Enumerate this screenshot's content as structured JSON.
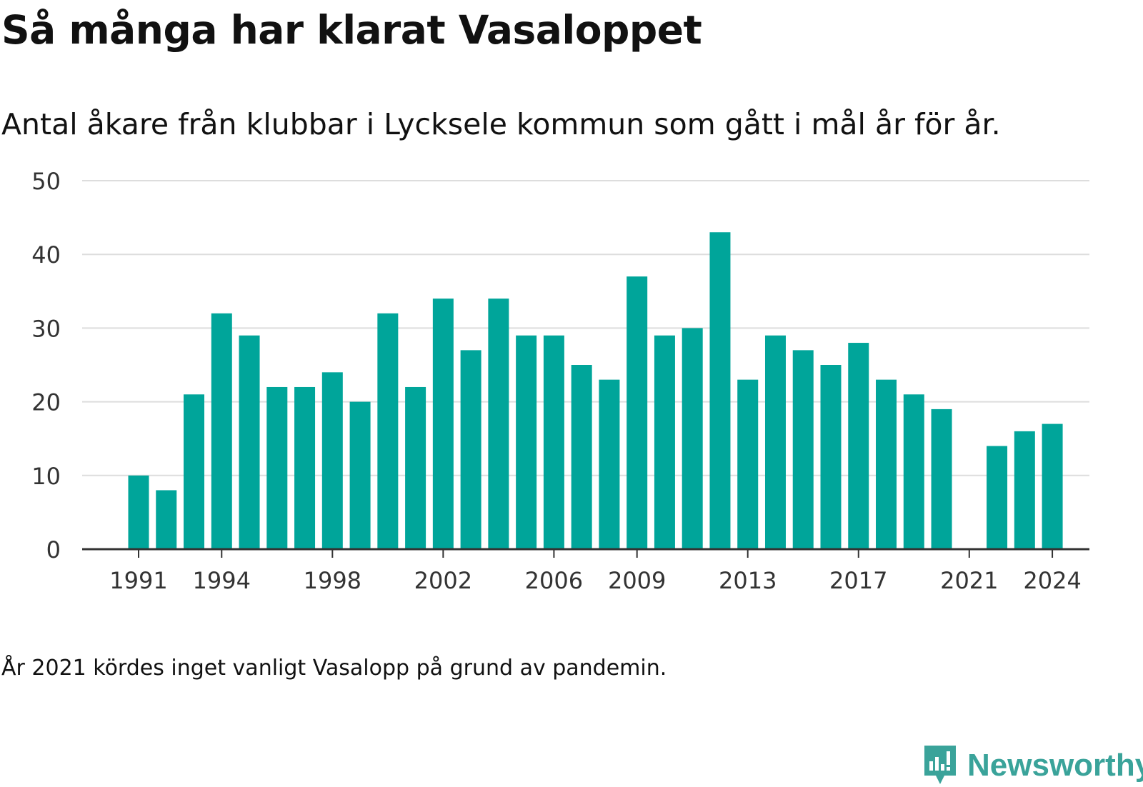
{
  "title": "Så många har klarat Vasaloppet",
  "subtitle": "Antal åkare från klubbar i Lycksele kommun som gått i mål år för år.",
  "note": "År 2021 kördes inget vanligt Vasalopp på grund av pandemin.",
  "logo": {
    "text": "Newsworthy",
    "icon": "newsworthy-logo-icon"
  },
  "colors": {
    "bar": "#00a59a",
    "grid": "#dddddd",
    "axis": "#333333",
    "brand": "#3aa39a"
  },
  "chart_data": {
    "type": "bar",
    "title": "Så många har klarat Vasaloppet",
    "subtitle": "Antal åkare från klubbar i Lycksele kommun som gått i mål år för år.",
    "xlabel": "",
    "ylabel": "",
    "ylim": [
      0,
      50
    ],
    "yticks": [
      0,
      10,
      20,
      30,
      40,
      50
    ],
    "xticks": [
      1991,
      1994,
      1998,
      2002,
      2006,
      2009,
      2013,
      2017,
      2021,
      2024
    ],
    "grid": true,
    "legend": "none",
    "categories": [
      1991,
      1992,
      1993,
      1994,
      1995,
      1996,
      1997,
      1998,
      1999,
      2000,
      2001,
      2002,
      2003,
      2004,
      2005,
      2006,
      2007,
      2008,
      2009,
      2010,
      2011,
      2012,
      2013,
      2014,
      2015,
      2016,
      2017,
      2018,
      2019,
      2020,
      2021,
      2022,
      2023,
      2024
    ],
    "values": [
      10,
      8,
      21,
      32,
      29,
      22,
      22,
      24,
      20,
      32,
      22,
      34,
      27,
      34,
      29,
      29,
      25,
      23,
      37,
      29,
      30,
      43,
      23,
      29,
      27,
      25,
      28,
      23,
      21,
      19,
      null,
      14,
      16,
      17
    ]
  }
}
